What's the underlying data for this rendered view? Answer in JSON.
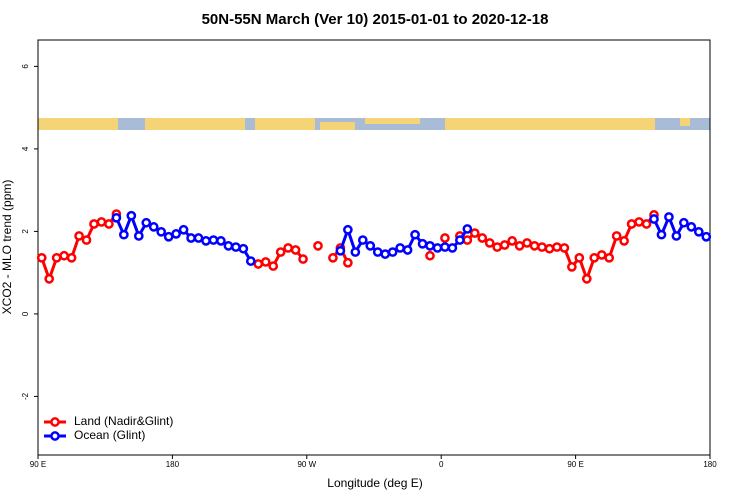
{
  "chart_data": {
    "type": "line",
    "title": "50N-55N March (Ver 10)   2015-01-01 to 2020-12-18",
    "xlabel": "Longitude (deg E)",
    "ylabel": "XCO2 - MLO trend (ppm)",
    "xlim": [
      90,
      540
    ],
    "ylim": [
      -3.42,
      6.64
    ],
    "xticks": [
      {
        "value": 90,
        "label": "90 E"
      },
      {
        "value": 180,
        "label": "180"
      },
      {
        "value": 270,
        "label": "90 W"
      },
      {
        "value": 360,
        "label": "0"
      },
      {
        "value": 450,
        "label": "90 E"
      },
      {
        "value": 540,
        "label": "180"
      }
    ],
    "yticks": [
      -2,
      0,
      2,
      4,
      6
    ],
    "legend": "bottom-left",
    "series": [
      {
        "name": "Land (Nadir&Glint)",
        "color": "#ff0000",
        "x": [
          92.5,
          97.5,
          102.5,
          107.5,
          112.5,
          117.5,
          122.5,
          127.5,
          132.5,
          137.5,
          142.5,
          232.5,
          237.5,
          242.5,
          247.5,
          252.5,
          257.5,
          262.5,
          267.5,
          272.5,
          277.5,
          282.5,
          287.5,
          292.5,
          297.5,
          302.5,
          352.5,
          357.5,
          362.5,
          367.5,
          372.5,
          377.5,
          382.5,
          387.5,
          392.5,
          397.5,
          402.5,
          407.5,
          412.5,
          417.5,
          422.5,
          427.5,
          432.5,
          437.5,
          442.5,
          447.5,
          452.5,
          457.5,
          462.5,
          467.5,
          472.5,
          477.5,
          482.5,
          487.5,
          492.5,
          497.5,
          502.5
        ],
        "values": [
          1.36,
          0.85,
          1.36,
          1.41,
          1.36,
          1.89,
          1.79,
          2.18,
          2.23,
          2.18,
          2.42,
          null,
          1.21,
          1.26,
          1.16,
          1.5,
          1.6,
          1.55,
          1.33,
          null,
          1.65,
          null,
          1.36,
          1.6,
          1.24,
          null,
          1.41,
          null,
          1.84,
          null,
          1.89,
          1.79,
          1.96,
          1.84,
          1.72,
          1.62,
          1.67,
          1.77,
          1.65,
          1.72,
          1.65,
          1.62,
          1.58,
          1.62,
          1.6,
          1.14,
          1.36,
          0.85,
          1.36,
          1.43,
          1.36,
          1.89,
          1.77,
          2.18,
          2.23,
          2.18,
          2.4
        ]
      },
      {
        "name": "Ocean (Glint)",
        "color": "#0000ff",
        "x": [
          142.5,
          147.5,
          152.5,
          157.5,
          162.5,
          167.5,
          172.5,
          177.5,
          182.5,
          187.5,
          192.5,
          197.5,
          202.5,
          207.5,
          212.5,
          217.5,
          222.5,
          227.5,
          232.5,
          237.5,
          292.5,
          297.5,
          302.5,
          307.5,
          312.5,
          317.5,
          322.5,
          327.5,
          332.5,
          337.5,
          342.5,
          347.5,
          352.5,
          357.5,
          362.5,
          367.5,
          372.5,
          377.5,
          382.5,
          502.5,
          507.5,
          512.5,
          517.5,
          522.5,
          527.5,
          532.5,
          537.5
        ],
        "values": [
          2.33,
          1.92,
          2.38,
          1.89,
          2.21,
          2.11,
          1.99,
          1.87,
          1.94,
          2.04,
          1.84,
          1.84,
          1.77,
          1.79,
          1.77,
          1.65,
          1.62,
          1.58,
          1.28,
          null,
          1.53,
          2.04,
          1.5,
          1.79,
          1.65,
          1.5,
          1.45,
          1.5,
          1.6,
          1.55,
          1.92,
          1.7,
          1.65,
          1.6,
          1.62,
          1.6,
          1.79,
          2.06,
          null,
          2.3,
          1.92,
          2.35,
          1.89,
          2.21,
          2.11,
          1.99,
          1.87
        ]
      }
    ]
  }
}
